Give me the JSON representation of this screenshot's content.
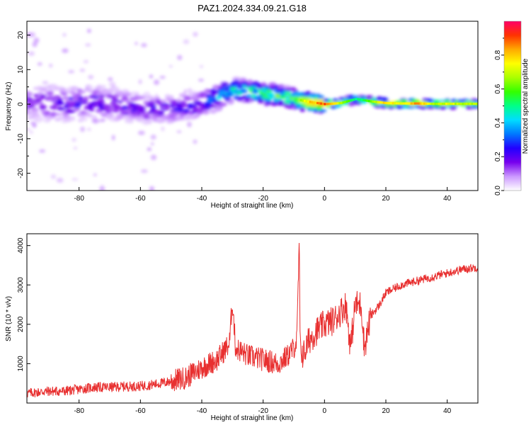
{
  "figure": {
    "title": "PAZ1.2024.334.09.21.G18"
  },
  "chart_data": [
    {
      "type": "heatmap",
      "title": "PAZ1.2024.334.09.21.G18",
      "xlabel": "Height of straight line (km)",
      "ylabel": "Frequency (Hz)",
      "xlim": [
        -97,
        50
      ],
      "ylim": [
        -25,
        24
      ],
      "xticks": [
        -80,
        -60,
        -40,
        -20,
        0,
        20,
        40
      ],
      "yticks": [
        -20,
        -10,
        0,
        10,
        20
      ],
      "colorbar": {
        "label": "Normalized spectral amplitude",
        "range": [
          0,
          1
        ],
        "ticks": [
          0.0,
          0.2,
          0.4,
          0.6,
          0.8
        ],
        "colors": [
          "#ffffff",
          "#cc99ff",
          "#7700ee",
          "#2200ff",
          "#0077ff",
          "#00ddff",
          "#00ff88",
          "#33ff00",
          "#aaff00",
          "#ffff00",
          "#ffaa00",
          "#ff3300",
          "#ff0066"
        ]
      },
      "ridge": [
        {
          "x": -97,
          "f": 0.5,
          "amp": 0.15
        },
        {
          "x": -90,
          "f": 0.3,
          "amp": 0.18
        },
        {
          "x": -85,
          "f": 0.0,
          "amp": 0.2
        },
        {
          "x": -80,
          "f": 0.2,
          "amp": 0.22
        },
        {
          "x": -75,
          "f": 0.5,
          "amp": 0.22
        },
        {
          "x": -70,
          "f": 0.0,
          "amp": 0.2
        },
        {
          "x": -65,
          "f": -0.5,
          "amp": 0.2
        },
        {
          "x": -60,
          "f": -1.0,
          "amp": 0.2
        },
        {
          "x": -55,
          "f": -1.5,
          "amp": 0.2
        },
        {
          "x": -50,
          "f": -1.5,
          "amp": 0.2
        },
        {
          "x": -45,
          "f": -1.0,
          "amp": 0.22
        },
        {
          "x": -40,
          "f": 0.0,
          "amp": 0.25
        },
        {
          "x": -35,
          "f": 2.0,
          "amp": 0.35
        },
        {
          "x": -30,
          "f": 4.0,
          "amp": 0.45
        },
        {
          "x": -25,
          "f": 4.0,
          "amp": 0.5
        },
        {
          "x": -20,
          "f": 3.0,
          "amp": 0.55
        },
        {
          "x": -15,
          "f": 2.5,
          "amp": 0.55
        },
        {
          "x": -10,
          "f": 1.5,
          "amp": 0.6
        },
        {
          "x": -6,
          "f": 0.8,
          "amp": 0.8
        },
        {
          "x": -4,
          "f": 0.5,
          "amp": 0.85
        },
        {
          "x": 0,
          "f": 0.0,
          "amp": 0.95
        },
        {
          "x": 5,
          "f": 0.3,
          "amp": 0.7
        },
        {
          "x": 10,
          "f": 1.5,
          "amp": 0.5
        },
        {
          "x": 15,
          "f": 0.8,
          "amp": 0.65
        },
        {
          "x": 20,
          "f": 0.3,
          "amp": 0.85
        },
        {
          "x": 25,
          "f": 0.2,
          "amp": 0.75
        },
        {
          "x": 30,
          "f": 0.2,
          "amp": 0.9
        },
        {
          "x": 35,
          "f": 0.1,
          "amp": 0.7
        },
        {
          "x": 40,
          "f": 0.1,
          "amp": 0.75
        },
        {
          "x": 45,
          "f": 0.1,
          "amp": 0.7
        },
        {
          "x": 50,
          "f": 0.1,
          "amp": 0.7
        }
      ]
    },
    {
      "type": "line",
      "xlabel": "Height of straight line (km)",
      "ylabel": "SNR (10 * v/v)",
      "xlim": [
        -97,
        50
      ],
      "ylim": [
        0,
        4300
      ],
      "xticks": [
        -80,
        -60,
        -40,
        -20,
        0,
        20,
        40
      ],
      "yticks": [
        1000,
        2000,
        3000,
        4000
      ],
      "color": "#e83030",
      "series": [
        {
          "x": [
            -97,
            -90,
            -85,
            -80,
            -75,
            -70,
            -65,
            -60,
            -55,
            -50,
            -45,
            -40,
            -35,
            -31,
            -30,
            -29,
            -25,
            -20,
            -15,
            -12,
            -10,
            -9,
            -8.2,
            -8,
            -7,
            -5,
            -3,
            0,
            3,
            5,
            7,
            8.5,
            10,
            12,
            13,
            15,
            18,
            20,
            25,
            30,
            35,
            40,
            45,
            50
          ],
          "y": [
            250,
            300,
            300,
            350,
            400,
            400,
            420,
            430,
            480,
            550,
            650,
            900,
            1100,
            1500,
            2600,
            1400,
            1200,
            1100,
            1000,
            1200,
            1400,
            1600,
            4200,
            1500,
            1200,
            1600,
            1800,
            2000,
            2100,
            2300,
            2500,
            1400,
            2500,
            2500,
            1400,
            2200,
            2500,
            2800,
            3000,
            3100,
            3200,
            3300,
            3400,
            3450
          ]
        }
      ]
    }
  ]
}
